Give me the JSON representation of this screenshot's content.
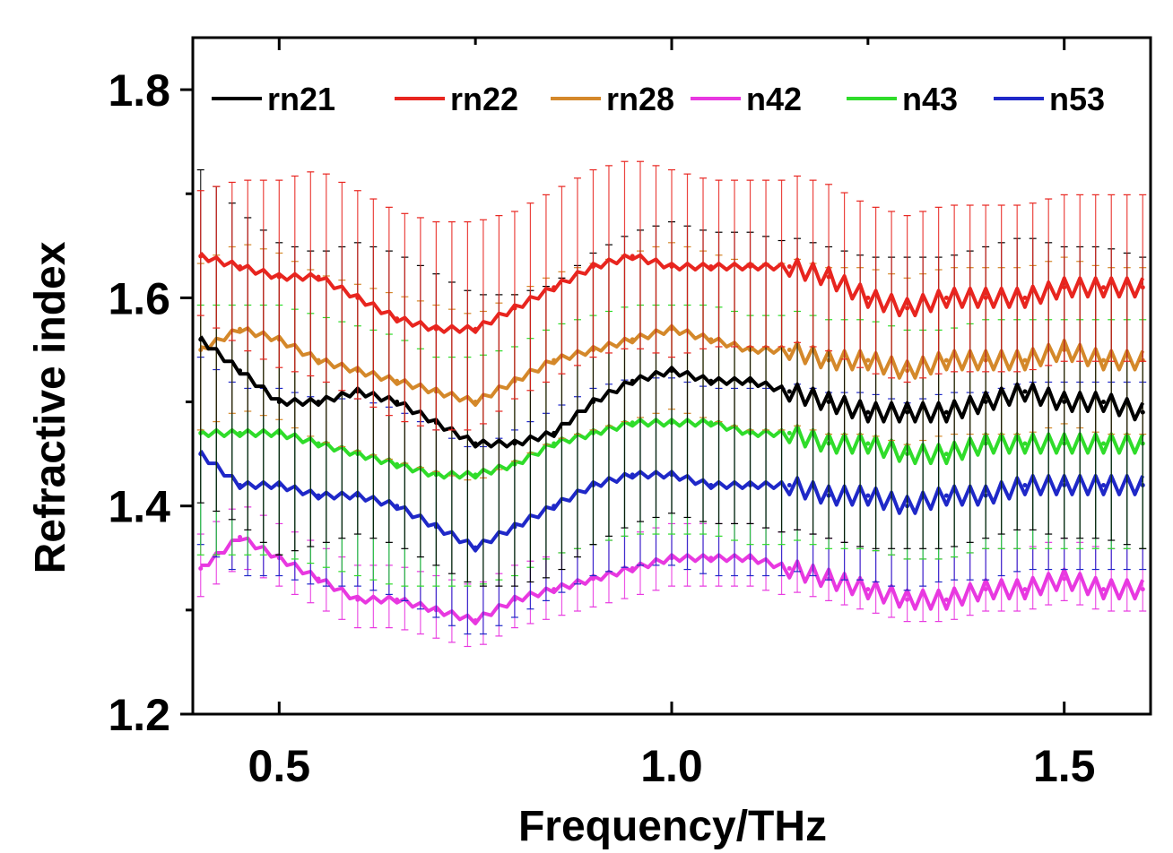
{
  "chart_data": {
    "type": "line",
    "title": "",
    "xlabel": "Frequency/THz",
    "ylabel": "Refractive index",
    "xlim": [
      0.39,
      1.61
    ],
    "ylim": [
      1.2,
      1.85
    ],
    "xticks": [
      0.5,
      1.0,
      1.5
    ],
    "xtick_labels": [
      "0.5",
      "1.0",
      "1.5"
    ],
    "yticks": [
      1.2,
      1.4,
      1.6,
      1.8
    ],
    "ytick_labels": [
      "1.2",
      "1.4",
      "1.6",
      "1.8"
    ],
    "grid": false,
    "legend_position": "top",
    "x": [
      0.4,
      0.45,
      0.5,
      0.55,
      0.6,
      0.65,
      0.7,
      0.75,
      0.8,
      0.85,
      0.9,
      0.95,
      1.0,
      1.05,
      1.1,
      1.15,
      1.2,
      1.25,
      1.3,
      1.35,
      1.4,
      1.45,
      1.5,
      1.55,
      1.6
    ],
    "series": [
      {
        "name": "rn21",
        "color": "#000000",
        "values": [
          1.56,
          1.53,
          1.5,
          1.5,
          1.51,
          1.5,
          1.48,
          1.46,
          1.46,
          1.47,
          1.5,
          1.52,
          1.53,
          1.52,
          1.52,
          1.51,
          1.5,
          1.49,
          1.49,
          1.49,
          1.5,
          1.51,
          1.5,
          1.5,
          1.49
        ],
        "error": [
          0.16,
          0.15,
          0.15,
          0.14,
          0.14,
          0.14,
          0.14,
          0.14,
          0.14,
          0.14,
          0.14,
          0.14,
          0.14,
          0.14,
          0.14,
          0.14,
          0.14,
          0.14,
          0.14,
          0.14,
          0.14,
          0.14,
          0.14,
          0.14,
          0.14
        ]
      },
      {
        "name": "rn22",
        "color": "#e8251f",
        "values": [
          1.64,
          1.63,
          1.62,
          1.62,
          1.6,
          1.58,
          1.57,
          1.57,
          1.59,
          1.61,
          1.63,
          1.64,
          1.63,
          1.63,
          1.63,
          1.63,
          1.62,
          1.6,
          1.59,
          1.6,
          1.6,
          1.6,
          1.61,
          1.61,
          1.61
        ],
        "error": [
          0.06,
          0.08,
          0.09,
          0.1,
          0.1,
          0.1,
          0.1,
          0.1,
          0.09,
          0.09,
          0.09,
          0.09,
          0.09,
          0.08,
          0.08,
          0.08,
          0.08,
          0.08,
          0.08,
          0.08,
          0.08,
          0.08,
          0.08,
          0.08,
          0.08
        ]
      },
      {
        "name": "rn28",
        "color": "#d4882a",
        "values": [
          1.55,
          1.57,
          1.56,
          1.54,
          1.53,
          1.52,
          1.51,
          1.5,
          1.52,
          1.54,
          1.55,
          1.56,
          1.57,
          1.56,
          1.55,
          1.55,
          1.54,
          1.54,
          1.53,
          1.54,
          1.54,
          1.54,
          1.55,
          1.54,
          1.54
        ],
        "error": [
          0.08,
          0.08,
          0.08,
          0.08,
          0.08,
          0.08,
          0.08,
          0.08,
          0.08,
          0.08,
          0.08,
          0.08,
          0.08,
          0.08,
          0.08,
          0.08,
          0.08,
          0.08,
          0.08,
          0.08,
          0.08,
          0.08,
          0.08,
          0.08,
          0.08
        ]
      },
      {
        "name": "n42",
        "color": "#e838e0",
        "values": [
          1.34,
          1.37,
          1.35,
          1.33,
          1.31,
          1.31,
          1.3,
          1.29,
          1.31,
          1.32,
          1.33,
          1.34,
          1.35,
          1.35,
          1.35,
          1.34,
          1.33,
          1.32,
          1.31,
          1.31,
          1.32,
          1.32,
          1.33,
          1.32,
          1.32
        ],
        "error": [
          0.03,
          0.03,
          0.03,
          0.03,
          0.03,
          0.03,
          0.03,
          0.03,
          0.03,
          0.03,
          0.03,
          0.03,
          0.03,
          0.03,
          0.03,
          0.03,
          0.03,
          0.03,
          0.03,
          0.03,
          0.03,
          0.03,
          0.03,
          0.03,
          0.03
        ]
      },
      {
        "name": "n43",
        "color": "#2fdc2a",
        "values": [
          1.47,
          1.47,
          1.47,
          1.46,
          1.45,
          1.44,
          1.43,
          1.43,
          1.44,
          1.46,
          1.47,
          1.48,
          1.48,
          1.48,
          1.47,
          1.47,
          1.46,
          1.46,
          1.45,
          1.45,
          1.46,
          1.46,
          1.46,
          1.46,
          1.46
        ],
        "error": [
          0.12,
          0.12,
          0.12,
          0.12,
          0.12,
          0.12,
          0.11,
          0.11,
          0.11,
          0.11,
          0.11,
          0.11,
          0.11,
          0.11,
          0.11,
          0.11,
          0.11,
          0.11,
          0.11,
          0.11,
          0.11,
          0.11,
          0.11,
          0.11,
          0.11
        ]
      },
      {
        "name": "n53",
        "color": "#1f28c8",
        "values": [
          1.45,
          1.42,
          1.42,
          1.41,
          1.41,
          1.4,
          1.38,
          1.36,
          1.38,
          1.4,
          1.42,
          1.43,
          1.43,
          1.42,
          1.42,
          1.42,
          1.41,
          1.41,
          1.4,
          1.41,
          1.41,
          1.42,
          1.42,
          1.42,
          1.42
        ],
        "error": [
          0.09,
          0.09,
          0.09,
          0.09,
          0.09,
          0.09,
          0.09,
          0.09,
          0.09,
          0.09,
          0.09,
          0.09,
          0.09,
          0.09,
          0.09,
          0.09,
          0.09,
          0.09,
          0.09,
          0.09,
          0.09,
          0.09,
          0.09,
          0.09,
          0.09
        ]
      }
    ]
  }
}
